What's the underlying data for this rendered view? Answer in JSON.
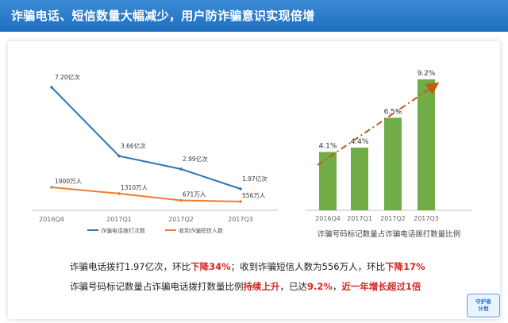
{
  "header": {
    "title": "诈骗电话、短信数量大幅减少，用户防诈骗意识实现倍增"
  },
  "summary": {
    "line1": {
      "part1": "诈骗电话拨打1.97亿次，环比",
      "hl1": "下降34%",
      "part2": "；收到诈骗短信人数为556万人，环比",
      "hl2": "下降17%"
    },
    "line2": {
      "part1": "诈骗号码标记数量占诈骗电话拨打数量比例",
      "hl1": "持续上升",
      "part2": "，已达",
      "hl2": "9.2%",
      "part3": "，",
      "hl3": "近一年增长超过1倍"
    }
  },
  "logo": {
    "line1": "守护者",
    "line2": "计划"
  },
  "colors": {
    "header": "#1f6fc0",
    "calls_line": "#2f75b5",
    "sms_line": "#ed7d31",
    "bar": "#70ad47",
    "trend": "#c55a11",
    "highlight": "#d62424"
  },
  "chart_data": [
    {
      "type": "line",
      "categories": [
        "2016Q4",
        "2017Q1",
        "2017Q2",
        "2017Q3"
      ],
      "series": [
        {
          "name": "诈骗电话拨打次数",
          "values": [
            7.2,
            3.66,
            2.99,
            1.97
          ],
          "labels": [
            "7.20亿次",
            "3.66亿次",
            "2.99亿次",
            "1.97亿次"
          ],
          "color": "#2f75b5"
        },
        {
          "name": "收到诈骗短信人数",
          "values": [
            1900,
            1310,
            671,
            556
          ],
          "labels": [
            "1900万人",
            "1310万人",
            "671万人",
            "556万人"
          ],
          "color": "#ed7d31"
        }
      ],
      "legend": "bottom"
    },
    {
      "type": "bar",
      "categories": [
        "2016Q4",
        "2017Q1",
        "2017Q2",
        "2017Q3"
      ],
      "values": [
        4.1,
        4.4,
        6.5,
        9.2
      ],
      "labels": [
        "4.1%",
        "4.4%",
        "6.5%",
        "9.2%"
      ],
      "xlabel": "诈骗号码标记数量占诈骗电话拨打数量比例",
      "trend_arrow": true,
      "color": "#70ad47"
    }
  ]
}
